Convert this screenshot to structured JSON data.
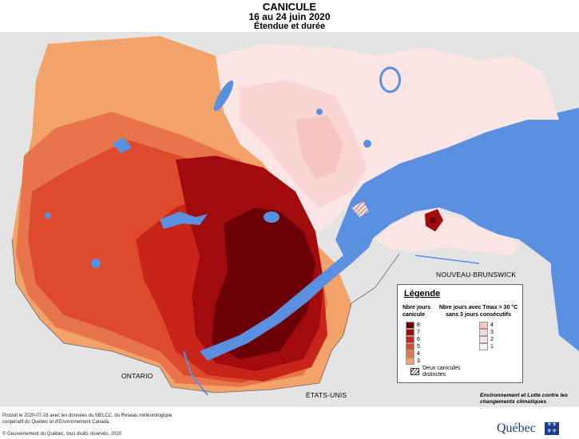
{
  "title": "CANICULE",
  "subtitle": "16 au 24 juin 2020",
  "subtitle2": "Étendue et durée",
  "labels": {
    "ontario": "ONTARIO",
    "etats_unis": "ÉTATS-UNIS",
    "nb": "NOUVEAU-BRUNSWICK"
  },
  "legend": {
    "title": "Légende",
    "col1_header": "Nbre jours canicule",
    "col2_header": "Nbre jours avec Tmax > 30 °C sans 3 jours consécutifs",
    "canicule_levels": [
      {
        "label": "8",
        "color": "#6b0006"
      },
      {
        "label": "7",
        "color": "#a10b0e"
      },
      {
        "label": "6",
        "color": "#c8241a"
      },
      {
        "label": "5",
        "color": "#dd4a2c"
      },
      {
        "label": "4",
        "color": "#e8744a"
      },
      {
        "label": "3",
        "color": "#f3a36a"
      }
    ],
    "tmax_levels": [
      {
        "label": "4",
        "color": "#f6c5c2"
      },
      {
        "label": "3",
        "color": "#f9d6d4"
      },
      {
        "label": "2",
        "color": "#fbe6e5"
      },
      {
        "label": "1",
        "color": "#fdf3f3"
      }
    ],
    "hatch_label": "Deux canicules distinctes"
  },
  "logo": {
    "text": "Environnement et Lutte contre les changements climatiques",
    "name": "Québec"
  },
  "credits": "Produit le 2020-07-28 avec les données du MELCC, du Réseau météorologique coopératif du Québec et d'Environnement Canada.",
  "copyright": "© Gouvernement du Québec, tous droits réservés, 2020"
}
